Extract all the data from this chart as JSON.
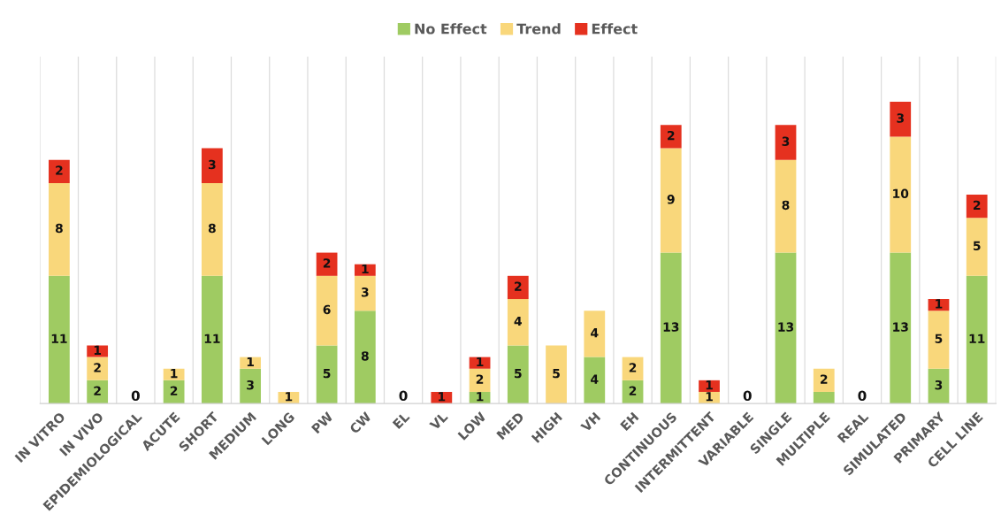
{
  "chart_data": {
    "type": "bar",
    "stacked": true,
    "legend": "top",
    "grid": "x",
    "data_labels": false,
    "categories": [
      "IN VITRO",
      "IN VIVO",
      "EPIDEMIOLOGICAL",
      "ACUTE",
      "SHORT",
      "MEDIUM",
      "LONG",
      "PW",
      "CW",
      "EL",
      "VL",
      "LOW",
      "MED",
      "HIGH",
      "VH",
      "EH",
      "CONTINUOUS",
      "INTERMITTENT",
      "VARIABLE",
      "SINGLE",
      "MULTIPLE",
      "REAL",
      "SIMULATED",
      "PRIMARY",
      "CELL LINE"
    ],
    "series": [
      {
        "name": "No Effect",
        "color": "#9fcb62",
        "values": [
          11,
          2,
          0,
          2,
          11,
          3,
          0,
          5,
          8,
          0,
          0,
          1,
          5,
          0,
          4,
          2,
          13,
          0,
          0,
          13,
          1,
          0,
          13,
          3,
          11
        ],
        "value_labels": [
          "11",
          "2",
          null,
          "2",
          "11",
          "3",
          null,
          "5",
          "8",
          null,
          null,
          "1",
          "5",
          null,
          "4",
          "2",
          "13",
          null,
          null,
          "13",
          null,
          null,
          "13",
          "3",
          "11"
        ]
      },
      {
        "name": "Trend",
        "color": "#f9d77b",
        "values": [
          8,
          2,
          0,
          1,
          8,
          1,
          1,
          6,
          3,
          0,
          0,
          2,
          4,
          5,
          4,
          2,
          9,
          1,
          0,
          8,
          2,
          0,
          10,
          5,
          5
        ],
        "value_labels": [
          "8",
          "2",
          null,
          "1",
          "8",
          "1",
          "1",
          "6",
          "3",
          null,
          null,
          "2",
          "4",
          "5",
          "4",
          "2",
          "9",
          "1",
          null,
          "8",
          "2",
          null,
          "10",
          "5",
          "5"
        ]
      },
      {
        "name": "Effect",
        "color": "#e5311f",
        "values": [
          2,
          1,
          0,
          0,
          3,
          0,
          0,
          2,
          1,
          0,
          1,
          1,
          2,
          0,
          0,
          0,
          2,
          1,
          0,
          3,
          0,
          0,
          3,
          1,
          2
        ],
        "value_labels": [
          "2",
          "1",
          null,
          null,
          "3",
          null,
          null,
          "2",
          "1",
          null,
          "1",
          "1",
          "2",
          null,
          null,
          null,
          "2",
          "1",
          null,
          "3",
          null,
          null,
          "3",
          "1",
          "2"
        ]
      }
    ],
    "totals": [
      null,
      null,
      "0",
      null,
      null,
      null,
      null,
      null,
      null,
      "0",
      null,
      null,
      null,
      null,
      null,
      null,
      null,
      null,
      "0",
      null,
      null,
      "0",
      null,
      null,
      null
    ]
  }
}
